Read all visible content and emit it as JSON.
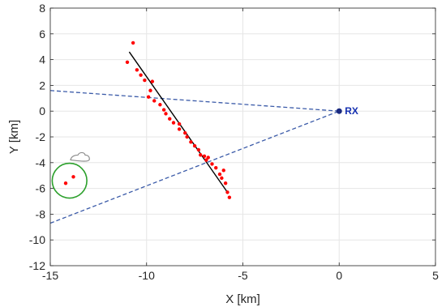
{
  "chart_data": {
    "type": "scatter",
    "title": "",
    "xlabel": "X [km]",
    "ylabel": "Y [km]",
    "xlim": [
      -15,
      5
    ],
    "ylim": [
      -12,
      8
    ],
    "xticks": [
      -15,
      -10,
      -5,
      0,
      5
    ],
    "yticks": [
      -12,
      -10,
      -8,
      -6,
      -4,
      -2,
      0,
      2,
      4,
      6,
      8
    ],
    "grid": true,
    "colors": {
      "points": "#ff0000",
      "fit_line": "#000000",
      "dashed_lines": "#3a5aa8",
      "receiver": "#1a2a80",
      "receiver_label": "#1530b0",
      "ellipse": "#2ca02c",
      "cloud": "#8c8c8c",
      "grid": "#e6e6e6"
    },
    "receiver": {
      "x": 0,
      "y": 0,
      "label": "RX"
    },
    "points": [
      {
        "x": -10.7,
        "y": 5.3
      },
      {
        "x": -11.0,
        "y": 3.8
      },
      {
        "x": -10.5,
        "y": 3.2
      },
      {
        "x": -10.3,
        "y": 2.8
      },
      {
        "x": -10.1,
        "y": 2.4
      },
      {
        "x": -9.7,
        "y": 2.3
      },
      {
        "x": -9.8,
        "y": 1.6
      },
      {
        "x": -9.9,
        "y": 1.1
      },
      {
        "x": -9.6,
        "y": 0.8
      },
      {
        "x": -9.3,
        "y": 0.5
      },
      {
        "x": -9.1,
        "y": 0.1
      },
      {
        "x": -9.0,
        "y": -0.2
      },
      {
        "x": -8.8,
        "y": -0.6
      },
      {
        "x": -8.6,
        "y": -0.9
      },
      {
        "x": -8.3,
        "y": -1.0
      },
      {
        "x": -8.3,
        "y": -1.4
      },
      {
        "x": -8.0,
        "y": -1.7
      },
      {
        "x": -7.9,
        "y": -2.0
      },
      {
        "x": -7.7,
        "y": -2.4
      },
      {
        "x": -7.5,
        "y": -2.7
      },
      {
        "x": -7.3,
        "y": -3.0
      },
      {
        "x": -7.2,
        "y": -3.4
      },
      {
        "x": -7.0,
        "y": -3.5
      },
      {
        "x": -6.9,
        "y": -3.8
      },
      {
        "x": -6.8,
        "y": -3.6
      },
      {
        "x": -6.6,
        "y": -4.1
      },
      {
        "x": -6.4,
        "y": -4.4
      },
      {
        "x": -6.2,
        "y": -4.9
      },
      {
        "x": -6.0,
        "y": -4.6
      },
      {
        "x": -6.1,
        "y": -5.2
      },
      {
        "x": -5.9,
        "y": -5.6
      },
      {
        "x": -5.8,
        "y": -6.3
      },
      {
        "x": -5.7,
        "y": -6.7
      },
      {
        "x": -14.2,
        "y": -5.6
      },
      {
        "x": -13.8,
        "y": -5.1
      }
    ],
    "fit_line": {
      "x": [
        -10.9,
        -5.8
      ],
      "y": [
        4.6,
        -6.3
      ]
    },
    "dashed_lines": [
      {
        "x": [
          -15,
          0
        ],
        "y": [
          1.6,
          0
        ]
      },
      {
        "x": [
          -15,
          0
        ],
        "y": [
          -8.7,
          0
        ]
      }
    ],
    "ellipse": {
      "cx": -14.0,
      "cy": -5.4,
      "rx": 0.9,
      "ry": 1.35
    },
    "cloud": {
      "cx": -13.4,
      "cy": -3.6
    }
  }
}
